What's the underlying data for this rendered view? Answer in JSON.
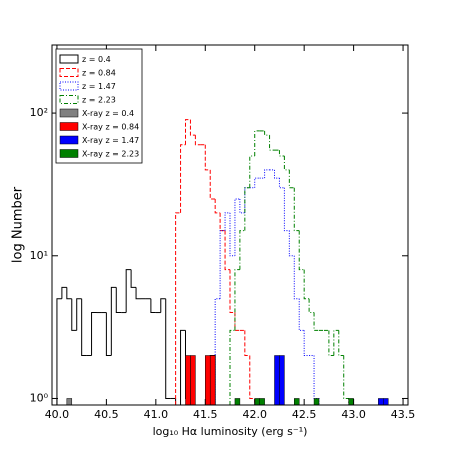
{
  "chart_data": {
    "type": "histogram",
    "xlabel": "log₁₀ Hα luminosity (erg s⁻¹)",
    "ylabel": "log Number",
    "xlim": [
      39.95,
      43.55
    ],
    "ylim": [
      0.9,
      300
    ],
    "log_y": true,
    "legend": "upper left",
    "xticks": [
      {
        "value": 40,
        "label": "40.0"
      },
      {
        "value": 40.5,
        "label": "40.5"
      },
      {
        "value": 41,
        "label": "41.0"
      },
      {
        "value": 41.5,
        "label": "41.5"
      },
      {
        "value": 42,
        "label": "42.0"
      },
      {
        "value": 42.5,
        "label": "42.5"
      },
      {
        "value": 43,
        "label": "43.0"
      },
      {
        "value": 43.5,
        "label": "43.5"
      }
    ],
    "yticks": [
      {
        "value": 1,
        "label": "10⁰"
      },
      {
        "value": 10,
        "label": "10¹"
      },
      {
        "value": 100,
        "label": "10²"
      }
    ],
    "series": [
      {
        "name": "z = 0.4",
        "style": "solid",
        "color": "#000000",
        "filled": false,
        "bins": [
          40.0,
          40.05,
          40.1,
          40.15,
          40.2,
          40.25,
          40.3,
          40.35,
          40.4,
          40.45,
          40.5,
          40.55,
          40.6,
          40.65,
          40.7,
          40.75,
          40.8,
          40.85,
          40.9,
          40.95,
          41.0,
          41.05,
          41.1,
          41.15,
          41.2,
          41.25,
          41.3,
          41.35,
          41.4,
          41.45,
          41.5,
          41.55,
          41.6
        ],
        "values": [
          5,
          6,
          5,
          3,
          5,
          2,
          2,
          4,
          4,
          4,
          2,
          6,
          4,
          4,
          8,
          6,
          5,
          5,
          5,
          4,
          4,
          5,
          1,
          1,
          0,
          3,
          1,
          0,
          0,
          0,
          0,
          2
        ]
      },
      {
        "name": "z = 0.84",
        "style": "dashed",
        "color": "#ff0000",
        "filled": false,
        "bins": [
          41.2,
          41.25,
          41.3,
          41.35,
          41.4,
          41.45,
          41.5,
          41.55,
          41.6,
          41.65,
          41.7,
          41.75,
          41.8,
          41.85,
          41.9,
          41.95,
          42.0
        ],
        "values": [
          20,
          60,
          90,
          70,
          60,
          60,
          40,
          25,
          20,
          15,
          8,
          4,
          3,
          3,
          2,
          1
        ]
      },
      {
        "name": "z = 1.47",
        "style": "dotted",
        "color": "#0000ff",
        "filled": false,
        "bins": [
          41.6,
          41.65,
          41.7,
          41.75,
          41.8,
          41.85,
          41.9,
          41.95,
          42.0,
          42.05,
          42.1,
          42.15,
          42.2,
          42.25,
          42.3,
          42.35,
          42.4,
          42.45,
          42.5,
          42.55,
          42.6,
          42.65
        ],
        "values": [
          5,
          15,
          20,
          10,
          25,
          20,
          30,
          30,
          35,
          35,
          40,
          40,
          35,
          30,
          15,
          10,
          5,
          3,
          2,
          2,
          1
        ]
      },
      {
        "name": "z = 2.23",
        "style": "dashdot",
        "color": "#008000",
        "filled": false,
        "bins": [
          41.75,
          41.8,
          41.85,
          41.9,
          41.95,
          42.0,
          42.05,
          42.1,
          42.15,
          42.2,
          42.25,
          42.3,
          42.35,
          42.4,
          42.45,
          42.5,
          42.55,
          42.6,
          42.65,
          42.7,
          42.75,
          42.8,
          42.85,
          42.9,
          42.95
        ],
        "values": [
          3,
          8,
          15,
          30,
          50,
          75,
          75,
          70,
          55,
          55,
          50,
          40,
          30,
          15,
          8,
          5,
          4,
          3,
          3,
          3,
          2,
          3,
          2,
          1
        ]
      },
      {
        "name": "X-ray z = 0.4",
        "style": "solid",
        "color": "#808080",
        "filled": true,
        "bins": [
          40.1,
          40.15
        ],
        "values": [
          1
        ]
      },
      {
        "name": "X-ray z = 0.84",
        "style": "solid",
        "color": "#ff0000",
        "filled": true,
        "bins": [
          41.3,
          41.35,
          41.4,
          41.45,
          41.5,
          41.55,
          41.6
        ],
        "values": [
          2,
          2,
          0,
          0,
          2,
          2
        ]
      },
      {
        "name": "X-ray z = 1.47",
        "style": "solid",
        "color": "#0000ff",
        "filled": true,
        "bins": [
          42.2,
          42.25,
          42.3,
          42.35,
          42.4,
          42.45,
          42.5,
          42.55,
          42.6,
          42.65,
          42.7,
          42.75,
          42.8,
          42.85,
          42.9,
          42.95,
          43.0,
          43.05,
          43.1,
          43.15,
          43.2,
          43.25,
          43.3,
          43.35
        ],
        "values": [
          2,
          2,
          0,
          0,
          0,
          0,
          0,
          0,
          0,
          0,
          0,
          0,
          0,
          0,
          0,
          0,
          0,
          0,
          0,
          0,
          0,
          1,
          1
        ]
      },
      {
        "name": "X-ray z = 2.23",
        "style": "solid",
        "color": "#008000",
        "filled": true,
        "bins": [
          41.8,
          41.85,
          41.9,
          41.95,
          42.0,
          42.05,
          42.1,
          42.15,
          42.2,
          42.25,
          42.3,
          42.35,
          42.4,
          42.45,
          42.5,
          42.55,
          42.6,
          42.65,
          42.7,
          42.75,
          42.8,
          42.85,
          42.9,
          42.95,
          43.0
        ],
        "values": [
          1,
          0,
          0,
          0,
          1,
          1,
          0,
          0,
          0,
          0,
          0,
          0,
          1,
          0,
          0,
          0,
          1,
          0,
          0,
          0,
          0,
          0,
          0,
          1
        ]
      }
    ]
  }
}
